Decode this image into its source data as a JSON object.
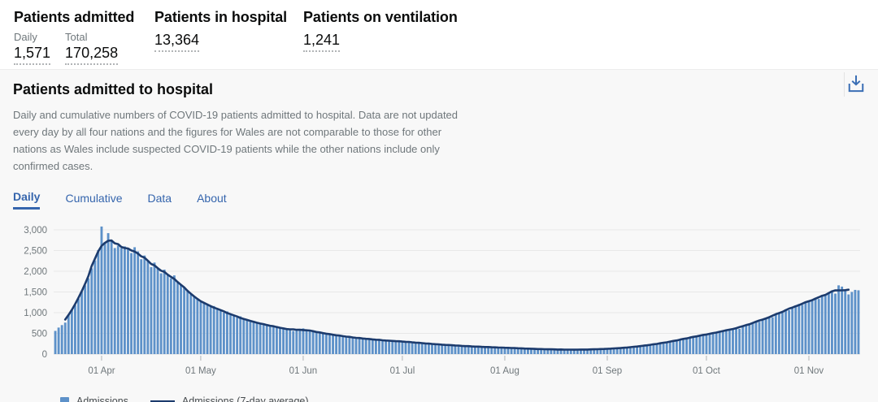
{
  "summary": {
    "admitted": {
      "title": "Patients admitted",
      "daily_label": "Daily",
      "daily_value": "1,571",
      "total_label": "Total",
      "total_value": "170,258"
    },
    "in_hospital": {
      "title": "Patients in hospital",
      "value": "13,364"
    },
    "ventilation": {
      "title": "Patients on ventilation",
      "value": "1,241"
    }
  },
  "card": {
    "title": "Patients admitted to hospital",
    "description": "Daily and cumulative numbers of COVID-19 patients admitted to hospital. Data are not updated every day by all four nations and the figures for Wales are not comparable to those for other nations as Wales include suspected COVID-19 patients while the other nations include only confirmed cases.",
    "tabs": [
      {
        "label": "Daily",
        "active": true
      },
      {
        "label": "Cumulative",
        "active": false
      },
      {
        "label": "Data",
        "active": false
      },
      {
        "label": "About",
        "active": false
      }
    ]
  },
  "legend": {
    "bars_label": "Admissions",
    "line_label": "Admissions (7-day average)"
  },
  "colors": {
    "bar": "#5d91c9",
    "line": "#1c3b6d",
    "accent_blue": "#3565ad",
    "grid": "#e8e8e8",
    "zero_line": "#dedede",
    "axis_text": "#6f777b",
    "tick": "#b1b4b6"
  },
  "chart_data": {
    "type": "bar",
    "title": "Patients admitted to hospital (daily)",
    "xlabel": "",
    "ylabel": "",
    "ylim": [
      0,
      3000
    ],
    "ytick_values": [
      0,
      500,
      1000,
      1500,
      2000,
      2500,
      3000
    ],
    "ytick_labels": [
      "0",
      "500",
      "1,000",
      "1,500",
      "2,000",
      "2,500",
      "3,000"
    ],
    "x_start": "18 Mar",
    "x_end": "16 Nov",
    "x_tick_labels": [
      "01 Apr",
      "01 May",
      "01 Jun",
      "01 Jul",
      "01 Aug",
      "01 Sep",
      "01 Oct",
      "01 Nov"
    ],
    "x_tick_day_index": [
      14,
      44,
      75,
      105,
      136,
      167,
      197,
      228
    ],
    "legend_position": "bottom-left",
    "grid": true,
    "series": [
      {
        "name": "Admissions",
        "type": "bar",
        "values": [
          560,
          640,
          700,
          760,
          940,
          1060,
          1180,
          1340,
          1500,
          1660,
          1830,
          2070,
          2260,
          2510,
          3080,
          2700,
          2920,
          2760,
          2560,
          2620,
          2560,
          2600,
          2560,
          2440,
          2580,
          2480,
          2290,
          2380,
          2250,
          2100,
          2210,
          2060,
          1950,
          2040,
          1900,
          1830,
          1900,
          1750,
          1680,
          1600,
          1520,
          1440,
          1380,
          1320,
          1260,
          1220,
          1180,
          1140,
          1160,
          1100,
          1050,
          1000,
          1030,
          960,
          920,
          880,
          910,
          850,
          810,
          780,
          800,
          750,
          720,
          740,
          700,
          670,
          690,
          650,
          620,
          640,
          600,
          580,
          560,
          580,
          610,
          620,
          560,
          590,
          540,
          520,
          540,
          500,
          480,
          500,
          460,
          440,
          460,
          430,
          410,
          430,
          400,
          380,
          400,
          370,
          360,
          380,
          350,
          340,
          355,
          330,
          320,
          335,
          310,
          300,
          320,
          310,
          290,
          300,
          280,
          270,
          285,
          260,
          250,
          265,
          240,
          230,
          245,
          225,
          215,
          230,
          210,
          200,
          215,
          195,
          185,
          200,
          180,
          175,
          190,
          170,
          165,
          180,
          160,
          155,
          170,
          150,
          155,
          145,
          160,
          140,
          135,
          150,
          130,
          125,
          140,
          120,
          115,
          130,
          115,
          110,
          125,
          110,
          105,
          120,
          105,
          100,
          115,
          105,
          100,
          115,
          105,
          110,
          120,
          110,
          115,
          125,
          120,
          130,
          125,
          140,
          135,
          145,
          160,
          150,
          165,
          180,
          175,
          195,
          210,
          200,
          225,
          245,
          235,
          260,
          285,
          270,
          300,
          330,
          315,
          350,
          380,
          365,
          400,
          430,
          415,
          450,
          470,
          460,
          490,
          520,
          505,
          540,
          570,
          555,
          590,
          620,
          640,
          610,
          660,
          700,
          730,
          760,
          800,
          780,
          830,
          870,
          910,
          890,
          950,
          1000,
          1040,
          1080,
          1060,
          1120,
          1170,
          1210,
          1190,
          1250,
          1280,
          1310,
          1360,
          1330,
          1400,
          1450,
          1480,
          1530,
          1460,
          1660,
          1630,
          1560,
          1440,
          1500,
          1550,
          1540
        ]
      },
      {
        "name": "Admissions (7-day average)",
        "type": "line",
        "derived": "centered 7-day average of Admissions"
      }
    ]
  }
}
